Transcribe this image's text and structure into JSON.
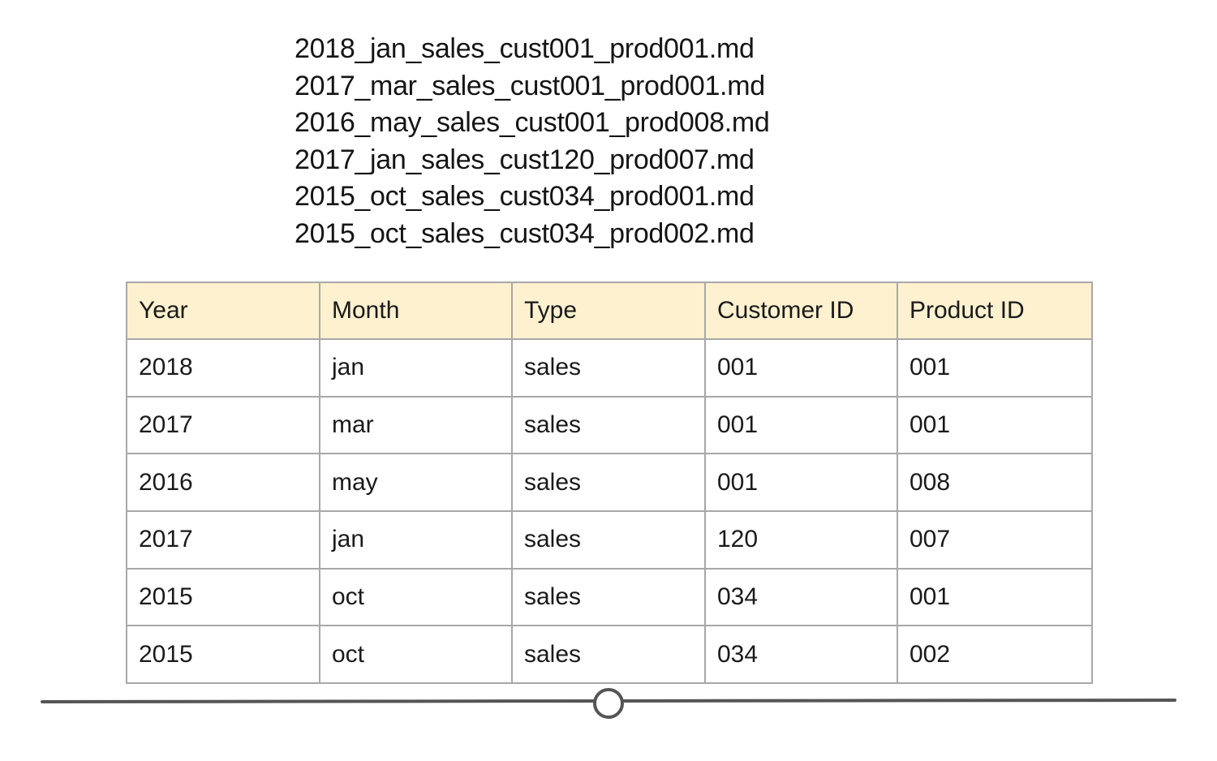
{
  "file_list": [
    "2018_jan_sales_cust001_prod001.md",
    "2017_mar_sales_cust001_prod001.md",
    "2016_may_sales_cust001_prod008.md",
    "2017_jan_sales_cust120_prod007.md",
    "2015_oct_sales_cust034_prod001.md",
    "2015_oct_sales_cust034_prod002.md"
  ],
  "table": {
    "headers": [
      "Year",
      "Month",
      "Type",
      "Customer ID",
      "Product ID"
    ],
    "header_bg": "#fdf1cf",
    "border_color": "#a8a8a8",
    "rows": [
      [
        "2018",
        "jan",
        "sales",
        "001",
        "001"
      ],
      [
        "2017",
        "mar",
        "sales",
        "001",
        "001"
      ],
      [
        "2016",
        "may",
        "sales",
        "001",
        "008"
      ],
      [
        "2017",
        "jan",
        "sales",
        "120",
        "007"
      ],
      [
        "2015",
        "oct",
        "sales",
        "034",
        "001"
      ],
      [
        "2015",
        "oct",
        "sales",
        "034",
        "002"
      ]
    ]
  },
  "slider": {
    "icon": "slider-handle-circle",
    "position_fraction": 0.5,
    "track_color": "#555555"
  }
}
